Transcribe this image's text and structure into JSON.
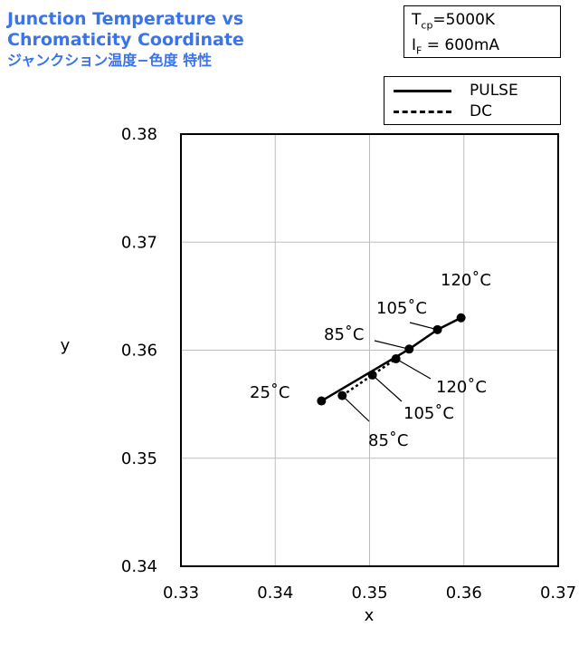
{
  "header": {
    "title_line1": "Junction Temperature vs",
    "title_line2": "Chromaticity Coordinate",
    "title_jp": "ジャンクション温度−色度 特性"
  },
  "conditions": {
    "tcp_symbol": "T",
    "tcp_sub": "cp",
    "tcp_value": "=5000K",
    "if_symbol": "I",
    "if_sub": "F",
    "if_value": " = 600mA"
  },
  "chart_data": {
    "type": "line",
    "xlabel": "x",
    "ylabel": "y",
    "xlim": [
      0.33,
      0.37
    ],
    "ylim": [
      0.34,
      0.38
    ],
    "xticks": [
      "0.33",
      "0.34",
      "0.35",
      "0.36",
      "0.37"
    ],
    "yticks": [
      "0.34",
      "0.35",
      "0.36",
      "0.37",
      "0.38"
    ],
    "grid": true,
    "legend_position": "top-right",
    "series": [
      {
        "name": "PULSE",
        "style": "solid",
        "points": [
          {
            "x": 0.3449,
            "y": 0.3553
          },
          {
            "x": 0.3542,
            "y": 0.3601
          },
          {
            "x": 0.3572,
            "y": 0.3619
          },
          {
            "x": 0.3597,
            "y": 0.363
          }
        ]
      },
      {
        "name": "DC",
        "style": "dashed",
        "points": [
          {
            "x": 0.3471,
            "y": 0.3558
          },
          {
            "x": 0.3503,
            "y": 0.3577
          },
          {
            "x": 0.3528,
            "y": 0.3592
          }
        ]
      }
    ],
    "annotations": [
      {
        "text": "25˚C"
      },
      {
        "text": "85˚C"
      },
      {
        "text": "105˚C"
      },
      {
        "text": "120˚C"
      },
      {
        "text": "85˚C"
      },
      {
        "text": "105˚C"
      },
      {
        "text": "120˚C"
      }
    ]
  }
}
